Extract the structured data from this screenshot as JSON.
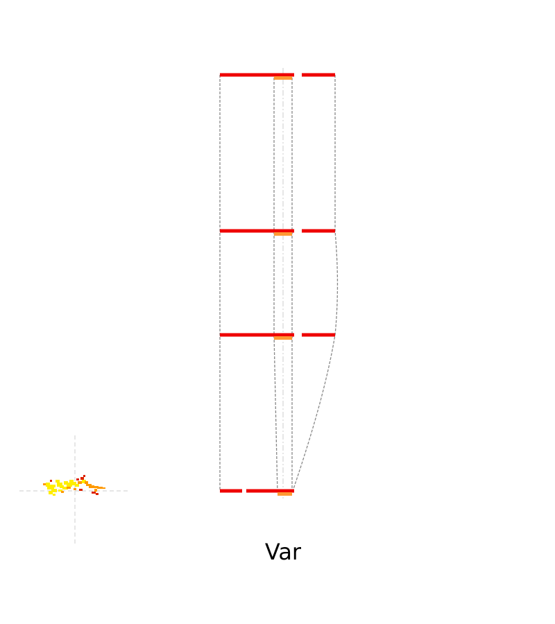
{
  "label": "Var",
  "colors": {
    "bar_red": "#ee0000",
    "cap_orange": "#ff9933",
    "outline_gray": "#888888",
    "axis_gray": "#cccccc",
    "glyph_yellow": "#ffee00",
    "glyph_orange": "#ff9900",
    "glyph_red": "#dd2200"
  }
}
